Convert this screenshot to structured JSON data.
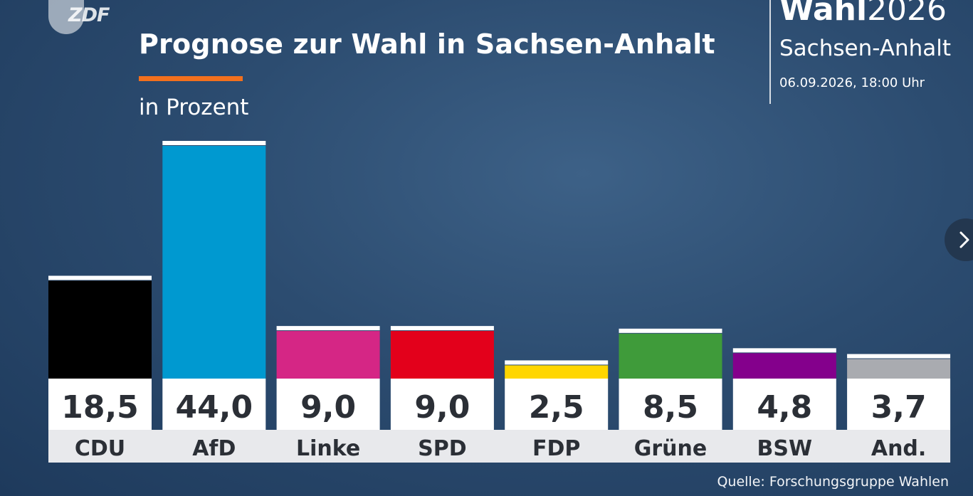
{
  "header": {
    "logo_text": "ZDF",
    "title": "Prognose zur Wahl in Sachsen-Anhalt",
    "subtitle": "in Prozent",
    "accent_color": "#f3701d"
  },
  "brand": {
    "word_bold": "Wahl",
    "word_light": "2026",
    "state": "Sachsen-Anhalt",
    "date": "06.09.2026, 18:00 Uhr"
  },
  "navigation": {
    "next_icon": "chevron-right-icon"
  },
  "chart_data": {
    "type": "bar",
    "title": "Prognose zur Wahl in Sachsen-Anhalt",
    "subtitle": "in Prozent",
    "categories": [
      "CDU",
      "AfD",
      "Linke",
      "SPD",
      "FDP",
      "Grüne",
      "BSW",
      "And."
    ],
    "values": [
      18.5,
      44.0,
      9.0,
      9.0,
      2.5,
      8.5,
      4.8,
      3.7
    ],
    "value_labels": [
      "18,5",
      "44,0",
      "9,0",
      "9,0",
      "2,5",
      "8,5",
      "4,8",
      "3,7"
    ],
    "colors": [
      "#000000",
      "#0099d0",
      "#d52685",
      "#e3001b",
      "#ffd600",
      "#3f9b3a",
      "#84008c",
      "#a9abb0"
    ],
    "ylim": [
      0,
      44
    ],
    "grid": false,
    "legend": "none"
  },
  "footer": {
    "source": "Quelle: Forschungsgruppe Wahlen"
  }
}
